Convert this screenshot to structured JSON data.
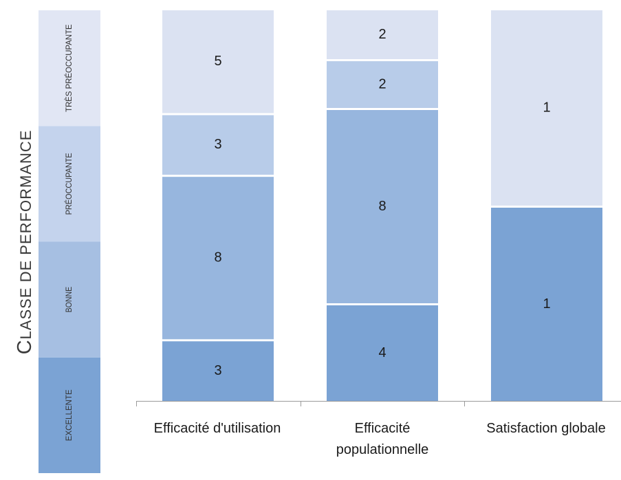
{
  "chart_data": {
    "type": "bar",
    "stacked": true,
    "normalized": true,
    "ylabel": "Classe de performance",
    "ylabel_parts": {
      "first": "C",
      "rest": "LASSE DE PERFORMANCE"
    },
    "categories": [
      "Efficacité d'utilisation",
      "Efficacité populationnelle",
      "Satisfaction globale"
    ],
    "category_lines": [
      [
        "Efficacité d'utilisation"
      ],
      [
        "Efficacité",
        "populationnelle"
      ],
      [
        "Satisfaction globale"
      ]
    ],
    "performance_classes": [
      "EXCELLENTE",
      "BONNE",
      "PRÉOCCUPANTE",
      "TRÈS PRÉOCCUPANTE"
    ],
    "series": [
      {
        "name": "EXCELLENTE",
        "values": [
          3,
          4,
          1
        ],
        "color": "#7ba3d4"
      },
      {
        "name": "BONNE",
        "values": [
          8,
          8,
          0
        ],
        "color": "#97b6de"
      },
      {
        "name": "PRÉOCCUPANTE",
        "values": [
          3,
          2,
          0
        ],
        "color": "#b8cce9"
      },
      {
        "name": "TRÈS PRÉOCCUPANTE",
        "values": [
          5,
          2,
          1
        ],
        "color": "#dbe2f2"
      }
    ],
    "band_colors": [
      "#7ba3d4",
      "#a6bfe2",
      "#c4d3ed",
      "#e1e6f4"
    ],
    "grid": false,
    "legend": "none"
  }
}
